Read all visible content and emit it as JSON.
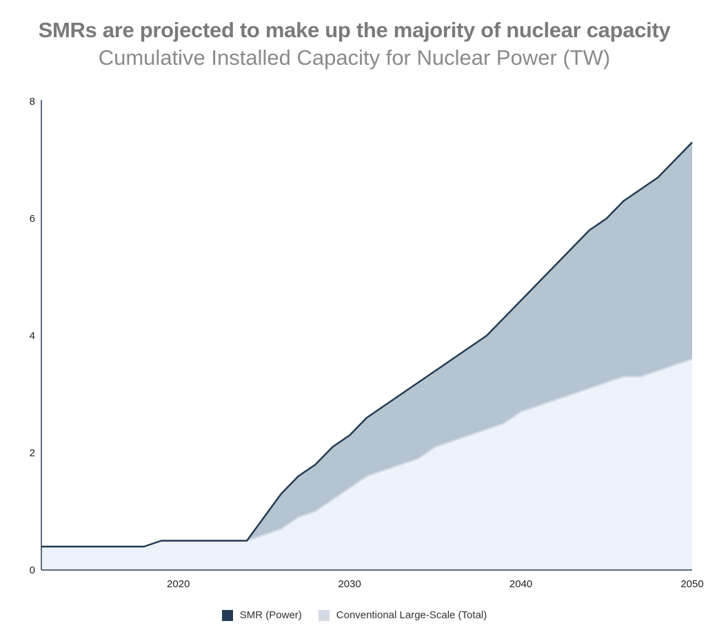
{
  "header": {
    "title": "SMRs are projected to make up the majority of nuclear capacity",
    "subtitle": "Cumulative Installed Capacity for Nuclear Power (TW)"
  },
  "colors": {
    "smr_line": "#233b52",
    "smr_fill": "#b5c4d0",
    "conventional_fill": "#eef3fb",
    "conventional_line": "#d3dae4",
    "axis": "#233b52"
  },
  "chart_data": {
    "type": "area",
    "title": "SMRs are projected to make up the majority of nuclear capacity",
    "subtitle": "Cumulative Installed Capacity for Nuclear Power (TW)",
    "xlabel": "",
    "ylabel": "",
    "xlim": [
      2012,
      2050
    ],
    "ylim": [
      0,
      8
    ],
    "xticks": [
      2020,
      2030,
      2040,
      2050
    ],
    "yticks": [
      0,
      2,
      4,
      6,
      8
    ],
    "grid": false,
    "legend_position": "bottom",
    "x": [
      2012,
      2013,
      2014,
      2015,
      2016,
      2017,
      2018,
      2019,
      2020,
      2021,
      2022,
      2023,
      2024,
      2025,
      2026,
      2027,
      2028,
      2029,
      2030,
      2031,
      2032,
      2033,
      2034,
      2035,
      2036,
      2037,
      2038,
      2039,
      2040,
      2041,
      2042,
      2043,
      2044,
      2045,
      2046,
      2047,
      2048,
      2049,
      2050
    ],
    "series": [
      {
        "name": "SMR (Power)",
        "values": [
          0.4,
          0.4,
          0.4,
          0.4,
          0.4,
          0.4,
          0.4,
          0.5,
          0.5,
          0.5,
          0.5,
          0.5,
          0.5,
          0.9,
          1.3,
          1.6,
          1.8,
          2.1,
          2.3,
          2.6,
          2.8,
          3.0,
          3.2,
          3.4,
          3.6,
          3.8,
          4.0,
          4.3,
          4.6,
          4.9,
          5.2,
          5.5,
          5.8,
          6.0,
          6.3,
          6.5,
          6.7,
          7.0,
          7.3
        ]
      },
      {
        "name": "Conventional Large-Scale (Total)",
        "values": [
          0.4,
          0.4,
          0.4,
          0.4,
          0.4,
          0.4,
          0.4,
          0.5,
          0.5,
          0.5,
          0.5,
          0.5,
          0.5,
          0.6,
          0.7,
          0.9,
          1.0,
          1.2,
          1.4,
          1.6,
          1.7,
          1.8,
          1.9,
          2.1,
          2.2,
          2.3,
          2.4,
          2.5,
          2.7,
          2.8,
          2.9,
          3.0,
          3.1,
          3.2,
          3.3,
          3.3,
          3.4,
          3.5,
          3.6
        ]
      }
    ]
  },
  "legend": {
    "smr_label": "SMR (Power)",
    "conventional_label": "Conventional Large-Scale (Total)"
  }
}
